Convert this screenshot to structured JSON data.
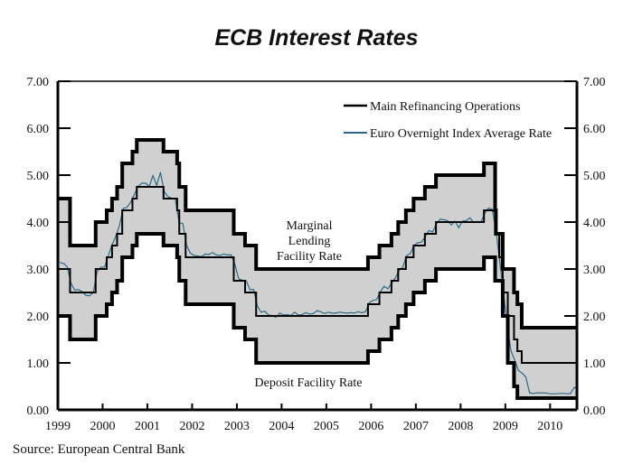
{
  "chart_data": {
    "type": "line",
    "title": "ECB Interest Rates",
    "source": "Source: European Central Bank",
    "xlabel": "",
    "ylabel": "",
    "ylim": [
      0,
      7
    ],
    "xlim": [
      1999,
      2010.6
    ],
    "y_ticks": [
      "0.00",
      "1.00",
      "2.00",
      "3.00",
      "4.00",
      "5.00",
      "6.00",
      "7.00"
    ],
    "x_ticks": [
      "1999",
      "2000",
      "2001",
      "2002",
      "2003",
      "2004",
      "2005",
      "2006",
      "2007",
      "2008",
      "2009",
      "2010"
    ],
    "grid": false,
    "legend_position": "top-right",
    "colors": {
      "band_fill": "#d0d0d0",
      "main_refi": "#000000",
      "eonia": "#2b6a84"
    },
    "annotations": {
      "marginal": [
        "Marginal",
        "Lending",
        "Facility Rate"
      ],
      "deposit": "Deposit Facility Rate"
    },
    "series": [
      {
        "name": "Main Refinancing Operations",
        "style": "step",
        "points": [
          [
            "1999-01-01",
            3.0
          ],
          [
            "1999-04-09",
            2.5
          ],
          [
            "1999-11-05",
            3.0
          ],
          [
            "2000-02-04",
            3.25
          ],
          [
            "2000-03-17",
            3.5
          ],
          [
            "2000-04-28",
            3.75
          ],
          [
            "2000-06-09",
            4.25
          ],
          [
            "2000-09-01",
            4.5
          ],
          [
            "2000-10-06",
            4.75
          ],
          [
            "2001-05-11",
            4.5
          ],
          [
            "2001-08-31",
            4.25
          ],
          [
            "2001-09-18",
            3.75
          ],
          [
            "2001-11-09",
            3.25
          ],
          [
            "2002-12-06",
            2.75
          ],
          [
            "2003-03-07",
            2.5
          ],
          [
            "2003-06-06",
            2.0
          ],
          [
            "2005-12-06",
            2.25
          ],
          [
            "2006-03-08",
            2.5
          ],
          [
            "2006-06-15",
            2.75
          ],
          [
            "2006-08-09",
            3.0
          ],
          [
            "2006-10-11",
            3.25
          ],
          [
            "2006-12-13",
            3.5
          ],
          [
            "2007-03-14",
            3.75
          ],
          [
            "2007-06-13",
            4.0
          ],
          [
            "2008-07-09",
            4.25
          ],
          [
            "2008-10-15",
            3.75
          ],
          [
            "2008-11-12",
            3.25
          ],
          [
            "2008-12-10",
            2.5
          ],
          [
            "2009-01-21",
            2.0
          ],
          [
            "2009-03-11",
            1.5
          ],
          [
            "2009-04-08",
            1.25
          ],
          [
            "2009-05-13",
            1.0
          ],
          [
            "2010-08-01",
            1.0
          ]
        ]
      },
      {
        "name": "Marginal Lending Facility Rate",
        "style": "step",
        "points": [
          [
            "1999-01-01",
            4.5
          ],
          [
            "1999-04-09",
            3.5
          ],
          [
            "1999-11-05",
            4.0
          ],
          [
            "2000-02-04",
            4.25
          ],
          [
            "2000-03-17",
            4.5
          ],
          [
            "2000-04-28",
            4.75
          ],
          [
            "2000-06-09",
            5.25
          ],
          [
            "2000-09-01",
            5.5
          ],
          [
            "2000-10-06",
            5.75
          ],
          [
            "2001-05-11",
            5.5
          ],
          [
            "2001-08-31",
            5.25
          ],
          [
            "2001-09-18",
            4.75
          ],
          [
            "2001-11-09",
            4.25
          ],
          [
            "2002-12-06",
            3.75
          ],
          [
            "2003-03-07",
            3.5
          ],
          [
            "2003-06-06",
            3.0
          ],
          [
            "2005-12-06",
            3.25
          ],
          [
            "2006-03-08",
            3.5
          ],
          [
            "2006-06-15",
            3.75
          ],
          [
            "2006-08-09",
            4.0
          ],
          [
            "2006-10-11",
            4.25
          ],
          [
            "2006-12-13",
            4.5
          ],
          [
            "2007-03-14",
            4.75
          ],
          [
            "2007-06-13",
            5.0
          ],
          [
            "2008-07-09",
            5.25
          ],
          [
            "2008-10-09",
            4.25
          ],
          [
            "2008-10-15",
            3.75
          ],
          [
            "2008-11-12",
            3.75
          ],
          [
            "2008-12-10",
            3.0
          ],
          [
            "2009-03-11",
            2.5
          ],
          [
            "2009-04-08",
            2.25
          ],
          [
            "2009-05-13",
            1.75
          ],
          [
            "2010-08-01",
            1.75
          ]
        ]
      },
      {
        "name": "Deposit Facility Rate",
        "style": "step",
        "points": [
          [
            "1999-01-01",
            2.0
          ],
          [
            "1999-04-09",
            1.5
          ],
          [
            "1999-11-05",
            2.0
          ],
          [
            "2000-02-04",
            2.25
          ],
          [
            "2000-03-17",
            2.5
          ],
          [
            "2000-04-28",
            2.75
          ],
          [
            "2000-06-09",
            3.25
          ],
          [
            "2000-09-01",
            3.5
          ],
          [
            "2000-10-06",
            3.75
          ],
          [
            "2001-05-11",
            3.5
          ],
          [
            "2001-08-31",
            3.25
          ],
          [
            "2001-09-18",
            2.75
          ],
          [
            "2001-11-09",
            2.25
          ],
          [
            "2002-12-06",
            1.75
          ],
          [
            "2003-03-07",
            1.5
          ],
          [
            "2003-06-06",
            1.0
          ],
          [
            "2005-12-06",
            1.25
          ],
          [
            "2006-03-08",
            1.5
          ],
          [
            "2006-06-15",
            1.75
          ],
          [
            "2006-08-09",
            2.0
          ],
          [
            "2006-10-11",
            2.25
          ],
          [
            "2006-12-13",
            2.5
          ],
          [
            "2007-03-14",
            2.75
          ],
          [
            "2007-06-13",
            3.0
          ],
          [
            "2008-07-09",
            3.25
          ],
          [
            "2008-10-09",
            2.75
          ],
          [
            "2008-11-12",
            2.75
          ],
          [
            "2008-12-10",
            2.0
          ],
          [
            "2009-01-21",
            1.0
          ],
          [
            "2009-03-11",
            0.5
          ],
          [
            "2009-04-08",
            0.25
          ],
          [
            "2010-08-01",
            0.25
          ]
        ]
      },
      {
        "name": "Euro Overnight Index Average Rate",
        "style": "line",
        "start": "1999-01",
        "frequency": "monthly",
        "values": [
          3.14,
          3.12,
          3.05,
          2.7,
          2.55,
          2.56,
          2.52,
          2.44,
          2.43,
          2.5,
          2.94,
          3.04,
          3.04,
          3.28,
          3.51,
          3.69,
          3.92,
          4.29,
          4.31,
          4.42,
          4.59,
          4.76,
          4.83,
          4.83,
          4.76,
          4.99,
          4.78,
          5.06,
          4.65,
          4.54,
          4.51,
          4.49,
          3.99,
          3.97,
          3.51,
          3.34,
          3.29,
          3.28,
          3.26,
          3.32,
          3.31,
          3.35,
          3.3,
          3.29,
          3.32,
          3.3,
          3.3,
          3.09,
          2.79,
          2.76,
          2.75,
          2.56,
          2.56,
          2.21,
          2.08,
          2.1,
          2.02,
          2.01,
          1.97,
          2.06,
          2.02,
          2.03,
          2.01,
          2.08,
          2.02,
          2.03,
          2.07,
          2.04,
          2.05,
          2.11,
          2.09,
          2.05,
          2.08,
          2.06,
          2.06,
          2.08,
          2.07,
          2.06,
          2.07,
          2.06,
          2.09,
          2.07,
          2.09,
          2.28,
          2.33,
          2.35,
          2.52,
          2.63,
          2.58,
          2.7,
          2.81,
          2.97,
          3.04,
          3.28,
          3.33,
          3.5,
          3.56,
          3.57,
          3.69,
          3.82,
          3.79,
          3.96,
          4.06,
          4.05,
          4.03,
          3.94,
          4.02,
          3.88,
          4.02,
          4.03,
          4.09,
          3.99,
          4.01,
          4.01,
          4.19,
          4.3,
          4.27,
          3.82,
          3.15,
          2.49,
          1.81,
          1.26,
          1.06,
          0.84,
          0.78,
          0.7,
          0.36,
          0.35,
          0.36,
          0.36,
          0.36,
          0.35,
          0.34,
          0.34,
          0.35,
          0.35,
          0.34,
          0.35,
          0.48,
          0.43
        ]
      }
    ]
  }
}
